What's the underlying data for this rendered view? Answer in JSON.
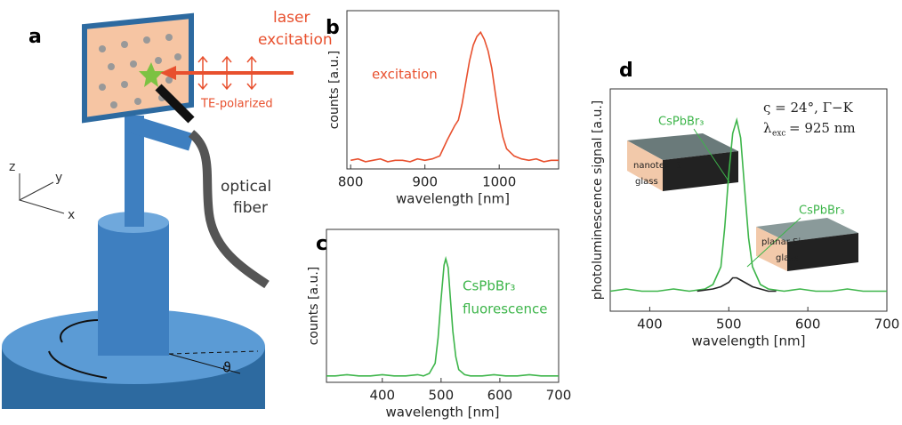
{
  "panel_a": {
    "label": "a",
    "texts": [
      "laser",
      "excitation",
      "TE-polarized",
      "z",
      "y",
      "x",
      "optical",
      "fiber",
      "ϑ"
    ]
  },
  "chart_data": [
    {
      "label": "b",
      "type": "line",
      "xlabel": "wavelength [nm]",
      "ylabel": "counts [a.u.]",
      "xlim": [
        795,
        1080
      ],
      "xticks": [
        800,
        900,
        1000
      ],
      "ylim": [
        0,
        1.1
      ],
      "annotations": [
        "excitation"
      ],
      "series": [
        {
          "color": "#e8502e",
          "x": [
            800,
            810,
            820,
            830,
            840,
            850,
            860,
            870,
            880,
            890,
            900,
            910,
            920,
            930,
            940,
            945,
            950,
            955,
            960,
            965,
            970,
            975,
            980,
            985,
            990,
            995,
            1000,
            1005,
            1010,
            1020,
            1030,
            1040,
            1050,
            1060,
            1070,
            1080
          ],
          "values": [
            0.06,
            0.07,
            0.05,
            0.06,
            0.07,
            0.05,
            0.06,
            0.06,
            0.05,
            0.07,
            0.06,
            0.07,
            0.09,
            0.2,
            0.3,
            0.34,
            0.45,
            0.6,
            0.75,
            0.86,
            0.92,
            0.95,
            0.9,
            0.82,
            0.7,
            0.52,
            0.35,
            0.22,
            0.14,
            0.09,
            0.07,
            0.06,
            0.07,
            0.05,
            0.06,
            0.06
          ]
        }
      ]
    },
    {
      "label": "c",
      "type": "line",
      "xlabel": "wavelength [nm]",
      "ylabel": "counts [a.u.]",
      "xlim": [
        305,
        700
      ],
      "xticks": [
        400,
        500,
        600,
        700
      ],
      "ylim": [
        0,
        1.2
      ],
      "annotations": [
        "CsPbBr₃",
        "fluorescence"
      ],
      "series": [
        {
          "color": "#3db54a",
          "x": [
            305,
            320,
            340,
            360,
            380,
            400,
            420,
            440,
            460,
            470,
            480,
            490,
            495,
            500,
            505,
            508,
            512,
            516,
            520,
            525,
            530,
            540,
            550,
            570,
            590,
            610,
            630,
            650,
            670,
            690,
            700
          ],
          "values": [
            0.05,
            0.05,
            0.06,
            0.05,
            0.05,
            0.06,
            0.05,
            0.05,
            0.06,
            0.05,
            0.07,
            0.15,
            0.35,
            0.65,
            0.92,
            0.97,
            0.9,
            0.65,
            0.4,
            0.2,
            0.1,
            0.06,
            0.05,
            0.05,
            0.06,
            0.05,
            0.05,
            0.06,
            0.05,
            0.05,
            0.05
          ]
        }
      ]
    },
    {
      "label": "d",
      "type": "line",
      "xlabel": "wavelength [nm]",
      "ylabel": "photoluminescence signal [a.u.]",
      "xlim": [
        350,
        700
      ],
      "xticks": [
        400,
        500,
        600,
        700
      ],
      "ylim": [
        0,
        1
      ],
      "annotations": [
        "ς = 24°, Γ−K",
        "λ",
        "exc",
        "= 925 nm",
        "CsPbBr₃",
        "nanotex. Si",
        "glass",
        "CsPbBr₃",
        "planar Si",
        "glass"
      ],
      "series": [
        {
          "color": "#3db54a",
          "x": [
            350,
            370,
            390,
            410,
            430,
            450,
            470,
            480,
            490,
            495,
            500,
            505,
            510,
            515,
            520,
            525,
            530,
            540,
            550,
            570,
            590,
            610,
            630,
            650,
            670,
            690,
            700
          ],
          "values": [
            0.09,
            0.1,
            0.09,
            0.09,
            0.1,
            0.09,
            0.1,
            0.12,
            0.2,
            0.38,
            0.62,
            0.8,
            0.86,
            0.78,
            0.55,
            0.33,
            0.2,
            0.12,
            0.1,
            0.09,
            0.1,
            0.09,
            0.09,
            0.1,
            0.09,
            0.09,
            0.09
          ]
        },
        {
          "color": "#222222",
          "x": [
            460,
            480,
            490,
            500,
            505,
            510,
            515,
            520,
            530,
            540,
            550,
            560
          ],
          "values": [
            0.09,
            0.1,
            0.11,
            0.13,
            0.15,
            0.15,
            0.14,
            0.13,
            0.11,
            0.1,
            0.09,
            0.09
          ]
        }
      ]
    }
  ]
}
